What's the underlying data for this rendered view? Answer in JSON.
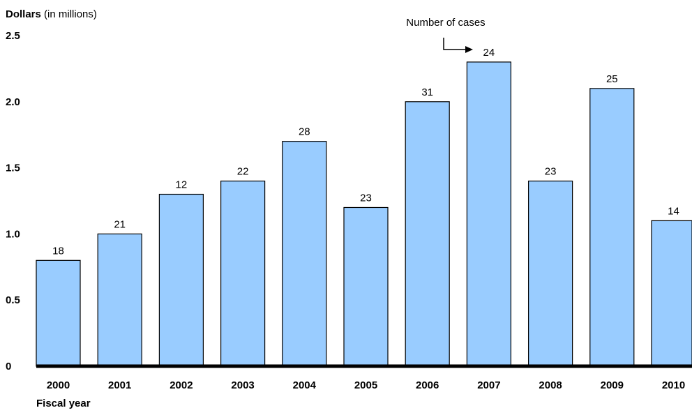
{
  "chart_data": {
    "type": "bar",
    "ylabel_bold": "Dollars",
    "ylabel_rest": " (in millions)",
    "xlabel": "Fiscal year",
    "annotation": "Number of cases",
    "categories": [
      "2000",
      "2001",
      "2002",
      "2003",
      "2004",
      "2005",
      "2006",
      "2007",
      "2008",
      "2009",
      "2010"
    ],
    "values": [
      0.8,
      1.0,
      1.3,
      1.4,
      1.7,
      1.2,
      2.0,
      2.3,
      1.4,
      2.1,
      1.1
    ],
    "data_labels": [
      "18",
      "21",
      "12",
      "22",
      "28",
      "23",
      "31",
      "24",
      "23",
      "25",
      "14"
    ],
    "ylim": [
      0,
      2.5
    ],
    "yticks": [
      "0",
      "0.5",
      "1.0",
      "1.5",
      "2.0",
      "2.5"
    ],
    "grid": false,
    "colors": {
      "bar_fill": "#99ccff",
      "bar_stroke": "#000000",
      "axis": "#000000"
    }
  }
}
